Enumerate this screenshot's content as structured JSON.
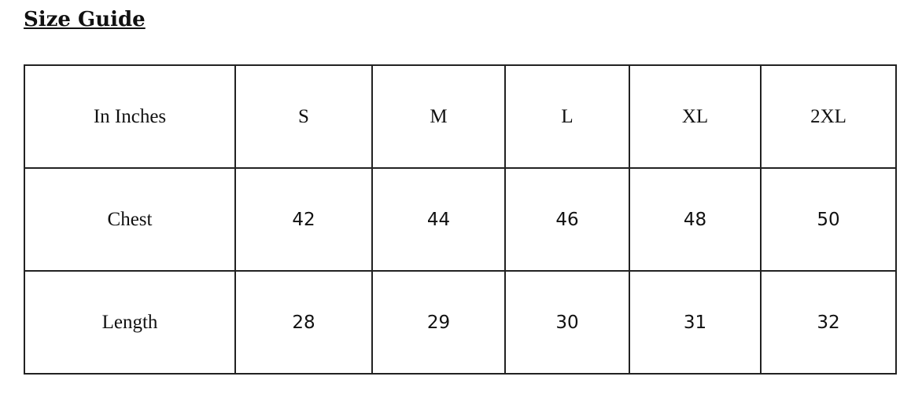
{
  "title": "Size Guide",
  "header": [
    "In Inches",
    "S",
    "M",
    "L",
    "XL",
    "2XL"
  ],
  "rows": [
    [
      "Chest",
      "42",
      "44",
      "46",
      "48",
      "50"
    ],
    [
      "Length",
      "28",
      "29",
      "30",
      "31",
      "32"
    ]
  ]
}
